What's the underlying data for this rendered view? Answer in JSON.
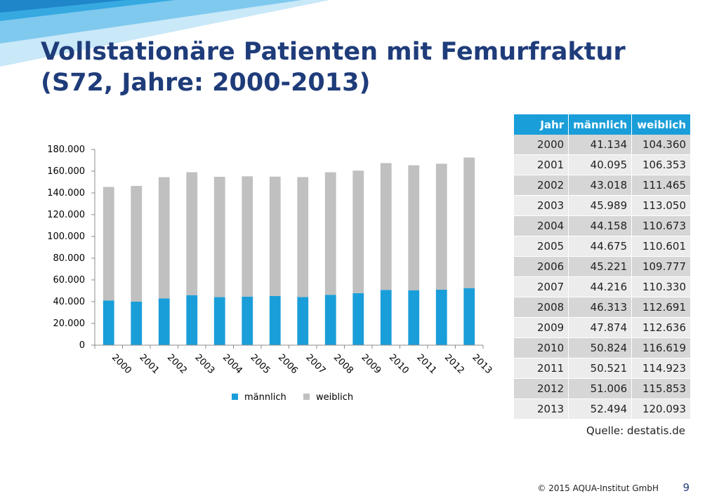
{
  "slide": {
    "title_line1": "Vollstationäre Patienten mit Femurfraktur",
    "title_line2": "(S72, Jahre: 2000-2013)",
    "source": "Quelle: destatis.de",
    "footer": "© 2015 AQUA-Institut GmbH",
    "page_number": "9",
    "colors": {
      "accent": "#1a9ed9",
      "secondary": "#c0c0c0",
      "title": "#1f3c7a"
    }
  },
  "chart_data": {
    "type": "bar",
    "stacked": true,
    "title": "",
    "xlabel": "",
    "ylabel": "",
    "categories": [
      "2000",
      "2001",
      "2002",
      "2003",
      "2004",
      "2005",
      "2006",
      "2007",
      "2008",
      "2009",
      "2010",
      "2011",
      "2012",
      "2013"
    ],
    "series": [
      {
        "name": "männlich",
        "color": "#1a9ed9",
        "values": [
          41134,
          40095,
          43018,
          45989,
          44158,
          44675,
          45221,
          44216,
          46313,
          47874,
          50824,
          50521,
          51006,
          52494
        ]
      },
      {
        "name": "weiblich",
        "color": "#c0c0c0",
        "values": [
          104360,
          106353,
          111465,
          113050,
          110673,
          110601,
          109777,
          110330,
          112691,
          112636,
          116619,
          114923,
          115853,
          120093
        ]
      }
    ],
    "ylim": [
      0,
      180000
    ],
    "yticks": [
      0,
      20000,
      40000,
      60000,
      80000,
      100000,
      120000,
      140000,
      160000,
      180000
    ],
    "ytick_labels": [
      "0",
      "20.000",
      "40.000",
      "60.000",
      "80.000",
      "100.000",
      "120.000",
      "140.000",
      "160.000",
      "180.000"
    ],
    "grid": false,
    "legend_position": "bottom"
  },
  "table": {
    "headers": [
      "Jahr",
      "männlich",
      "weiblich"
    ],
    "rows": [
      [
        "2000",
        "41.134",
        "104.360"
      ],
      [
        "2001",
        "40.095",
        "106.353"
      ],
      [
        "2002",
        "43.018",
        "111.465"
      ],
      [
        "2003",
        "45.989",
        "113.050"
      ],
      [
        "2004",
        "44.158",
        "110.673"
      ],
      [
        "2005",
        "44.675",
        "110.601"
      ],
      [
        "2006",
        "45.221",
        "109.777"
      ],
      [
        "2007",
        "44.216",
        "110.330"
      ],
      [
        "2008",
        "46.313",
        "112.691"
      ],
      [
        "2009",
        "47.874",
        "112.636"
      ],
      [
        "2010",
        "50.824",
        "116.619"
      ],
      [
        "2011",
        "50.521",
        "114.923"
      ],
      [
        "2012",
        "51.006",
        "115.853"
      ],
      [
        "2013",
        "52.494",
        "120.093"
      ]
    ]
  }
}
